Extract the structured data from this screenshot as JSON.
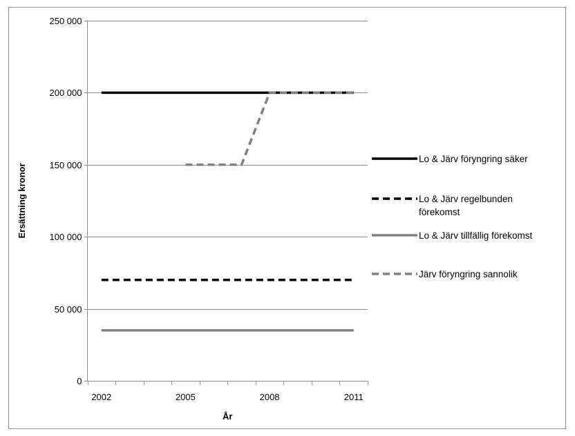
{
  "chart_data": {
    "type": "line",
    "xlabel": "År",
    "ylabel": "Ersättning kronor",
    "x": [
      2002,
      2003,
      2004,
      2005,
      2006,
      2007,
      2008,
      2009,
      2010,
      2011
    ],
    "xticks": [
      2002,
      2005,
      2008,
      2011
    ],
    "xtick_labels": [
      "2002",
      "2005",
      "2008",
      "2011"
    ],
    "xlim": [
      2002,
      2011
    ],
    "ylim": [
      0,
      250000
    ],
    "yticks": [
      0,
      50000,
      100000,
      150000,
      200000,
      250000
    ],
    "ytick_labels": [
      "0",
      "50 000",
      "100 000",
      "150 000",
      "200 000",
      "250 000"
    ],
    "grid": "horizontal",
    "legend_position": "right",
    "series": [
      {
        "name_lines": [
          "Lo & Järv föryngring säker"
        ],
        "x": [
          2002,
          2003,
          2004,
          2005,
          2006,
          2007,
          2008,
          2009,
          2010,
          2011
        ],
        "values": [
          200000,
          200000,
          200000,
          200000,
          200000,
          200000,
          200000,
          200000,
          200000,
          200000
        ],
        "color": "#000000",
        "style": "solid"
      },
      {
        "name_lines": [
          "Lo & Järv regelbunden",
          "förekomst"
        ],
        "x": [
          2002,
          2003,
          2004,
          2005,
          2006,
          2007,
          2008,
          2009,
          2010,
          2011
        ],
        "values": [
          70000,
          70000,
          70000,
          70000,
          70000,
          70000,
          70000,
          70000,
          70000,
          70000
        ],
        "color": "#000000",
        "style": "dashed"
      },
      {
        "name_lines": [
          "Lo & Järv tillfällig förekomst"
        ],
        "x": [
          2002,
          2003,
          2004,
          2005,
          2006,
          2007,
          2008,
          2009,
          2010,
          2011
        ],
        "values": [
          35000,
          35000,
          35000,
          35000,
          35000,
          35000,
          35000,
          35000,
          35000,
          35000
        ],
        "color": "#808080",
        "style": "solid"
      },
      {
        "name_lines": [
          "Järv föryngring sannolik"
        ],
        "x": [
          2005,
          2006,
          2007,
          2008,
          2009,
          2010,
          2011
        ],
        "values": [
          150000,
          150000,
          150000,
          200000,
          200000,
          200000,
          200000
        ],
        "color": "#808080",
        "style": "dashed"
      }
    ]
  }
}
